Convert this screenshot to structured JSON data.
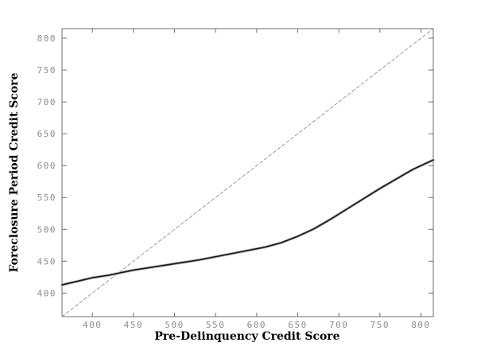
{
  "figure": {
    "background_color": "#ffffff",
    "spine_color": "#6e6e6e",
    "tick_label_color": "#8c8c8c"
  },
  "chart_data": {
    "type": "line",
    "title": "",
    "xlabel": "Pre-Delinquency Credit Score",
    "ylabel": "Foreclosure Period Credit Score",
    "xlim": [
      363,
      815
    ],
    "ylim": [
      363,
      815
    ],
    "x_ticks": [
      400,
      450,
      500,
      550,
      600,
      650,
      700,
      750,
      800
    ],
    "y_ticks": [
      400,
      450,
      500,
      550,
      600,
      650,
      700,
      750,
      800
    ],
    "grid": "off",
    "legend": "none",
    "box": "on",
    "series": [
      {
        "name": "foreclosure-vs-predelinquency-score-curve",
        "style": "solid",
        "color": "#1a1a1a",
        "width": 1.7,
        "halo_color": "#bcbcbc",
        "halo_width": 3.4,
        "x": [
          363,
          380,
          400,
          420,
          435,
          450,
          470,
          490,
          510,
          530,
          550,
          570,
          590,
          610,
          630,
          650,
          670,
          690,
          710,
          730,
          750,
          770,
          790,
          805,
          815
        ],
        "y": [
          413,
          418,
          424,
          428,
          432,
          436,
          440,
          444,
          448,
          452,
          457,
          462,
          467,
          472,
          479,
          489,
          501,
          516,
          532,
          548,
          564,
          579,
          594,
          603,
          609
        ]
      },
      {
        "name": "45-degree-reference-line",
        "style": "dashed",
        "color": "#999999",
        "width": 1,
        "dash": "4,3",
        "x": [
          363,
          815
        ],
        "y": [
          363,
          815
        ]
      }
    ]
  }
}
